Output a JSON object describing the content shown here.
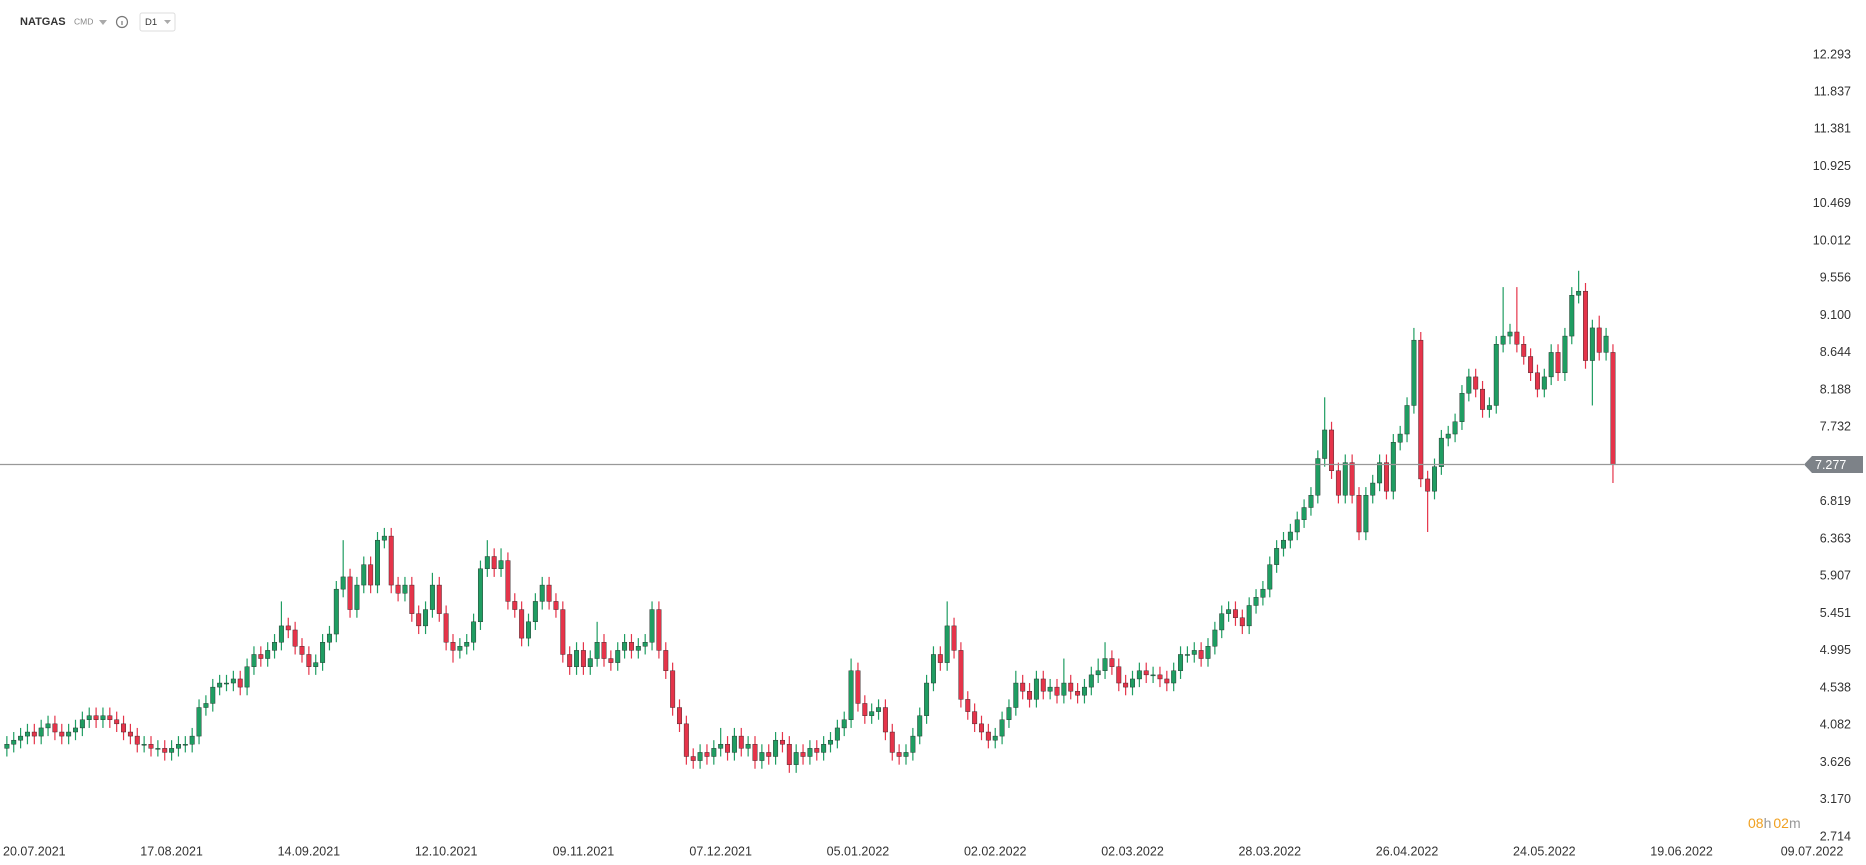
{
  "header": {
    "symbol": "NATGAS",
    "market": "CMD",
    "timeframe": "D1"
  },
  "countdown": {
    "hours": "08",
    "hours_unit": "h",
    "minutes": "02",
    "minutes_unit": "m"
  },
  "chart_data": {
    "type": "candlestick",
    "up_color": "#1f9d62",
    "down_color": "#e5344a",
    "xlim": [
      -1,
      263
    ],
    "ylim": [
      2.714,
      12.293
    ],
    "xticks": [
      {
        "value": 4,
        "label": "20.07.2021"
      },
      {
        "value": 24,
        "label": "17.08.2021"
      },
      {
        "value": 44,
        "label": "14.09.2021"
      },
      {
        "value": 64,
        "label": "12.10.2021"
      },
      {
        "value": 84,
        "label": "09.11.2021"
      },
      {
        "value": 104,
        "label": "07.12.2021"
      },
      {
        "value": 124,
        "label": "05.01.2022"
      },
      {
        "value": 144,
        "label": "02.02.2022"
      },
      {
        "value": 164,
        "label": "02.03.2022"
      },
      {
        "value": 184,
        "label": "28.03.2022"
      },
      {
        "value": 204,
        "label": "26.04.2022"
      },
      {
        "value": 224,
        "label": "24.05.2022"
      },
      {
        "value": 244,
        "label": "19.06.2022"
      },
      {
        "value": 263,
        "label": "09.07.2022"
      }
    ],
    "yticks": [
      2.714,
      {
        "value": 3.17,
        "label": "3.170"
      },
      3.626,
      4.082,
      4.538,
      4.995,
      5.451,
      5.907,
      6.363,
      6.819,
      7.732,
      8.188,
      8.644,
      {
        "value": 9.1,
        "label": "9.100"
      },
      9.556,
      10.012,
      10.469,
      10.925,
      11.381,
      11.837,
      12.293
    ],
    "ohlc": [
      [
        3.8,
        3.95,
        3.7,
        3.85
      ],
      [
        3.85,
        4.0,
        3.75,
        3.9
      ],
      [
        3.9,
        4.05,
        3.8,
        3.95
      ],
      [
        3.95,
        4.1,
        3.85,
        4.0
      ],
      [
        4.0,
        4.1,
        3.85,
        3.95
      ],
      [
        3.95,
        4.15,
        3.85,
        4.05
      ],
      [
        4.05,
        4.2,
        3.95,
        4.1
      ],
      [
        4.1,
        4.2,
        3.9,
        4.0
      ],
      [
        4.0,
        4.1,
        3.85,
        3.95
      ],
      [
        3.95,
        4.1,
        3.85,
        4.0
      ],
      [
        4.0,
        4.15,
        3.9,
        4.05
      ],
      [
        4.05,
        4.25,
        3.95,
        4.15
      ],
      [
        4.15,
        4.3,
        4.05,
        4.2
      ],
      [
        4.2,
        4.3,
        4.05,
        4.15
      ],
      [
        4.15,
        4.3,
        4.05,
        4.2
      ],
      [
        4.2,
        4.3,
        4.05,
        4.15
      ],
      [
        4.15,
        4.25,
        4.0,
        4.1
      ],
      [
        4.1,
        4.2,
        3.9,
        4.0
      ],
      [
        4.0,
        4.1,
        3.85,
        3.95
      ],
      [
        3.95,
        4.05,
        3.75,
        3.85
      ],
      [
        3.85,
        3.95,
        3.75,
        3.85
      ],
      [
        3.85,
        3.95,
        3.7,
        3.8
      ],
      [
        3.8,
        3.9,
        3.7,
        3.8
      ],
      [
        3.8,
        3.9,
        3.65,
        3.75
      ],
      [
        3.75,
        3.9,
        3.65,
        3.8
      ],
      [
        3.8,
        3.95,
        3.7,
        3.85
      ],
      [
        3.85,
        3.95,
        3.75,
        3.85
      ],
      [
        3.85,
        4.05,
        3.75,
        3.95
      ],
      [
        3.95,
        4.4,
        3.85,
        4.3
      ],
      [
        4.3,
        4.45,
        4.2,
        4.35
      ],
      [
        4.35,
        4.65,
        4.25,
        4.55
      ],
      [
        4.55,
        4.7,
        4.45,
        4.6
      ],
      [
        4.6,
        4.7,
        4.5,
        4.6
      ],
      [
        4.6,
        4.75,
        4.5,
        4.65
      ],
      [
        4.65,
        4.75,
        4.45,
        4.55
      ],
      [
        4.55,
        4.9,
        4.45,
        4.8
      ],
      [
        4.8,
        5.05,
        4.7,
        4.95
      ],
      [
        4.95,
        5.05,
        4.8,
        4.9
      ],
      [
        4.9,
        5.1,
        4.8,
        5.0
      ],
      [
        5.0,
        5.2,
        4.9,
        5.1
      ],
      [
        5.1,
        5.6,
        5.0,
        5.3
      ],
      [
        5.3,
        5.4,
        5.15,
        5.25
      ],
      [
        5.25,
        5.35,
        4.95,
        5.05
      ],
      [
        5.05,
        5.15,
        4.85,
        4.95
      ],
      [
        4.95,
        5.05,
        4.7,
        4.8
      ],
      [
        4.8,
        4.95,
        4.7,
        4.85
      ],
      [
        4.85,
        5.2,
        4.75,
        5.1
      ],
      [
        5.1,
        5.3,
        5.0,
        5.2
      ],
      [
        5.2,
        5.85,
        5.1,
        5.75
      ],
      [
        5.75,
        6.35,
        5.65,
        5.9
      ],
      [
        5.9,
        6.0,
        5.4,
        5.5
      ],
      [
        5.5,
        5.9,
        5.4,
        5.8
      ],
      [
        5.8,
        6.15,
        5.7,
        6.05
      ],
      [
        6.05,
        6.15,
        5.7,
        5.8
      ],
      [
        5.8,
        6.45,
        5.7,
        6.35
      ],
      [
        6.35,
        6.5,
        6.25,
        6.4
      ],
      [
        6.4,
        6.5,
        5.7,
        5.8
      ],
      [
        5.8,
        5.9,
        5.6,
        5.7
      ],
      [
        5.7,
        5.9,
        5.6,
        5.8
      ],
      [
        5.8,
        5.9,
        5.35,
        5.45
      ],
      [
        5.45,
        5.55,
        5.2,
        5.3
      ],
      [
        5.3,
        5.6,
        5.2,
        5.5
      ],
      [
        5.5,
        5.95,
        5.4,
        5.8
      ],
      [
        5.8,
        5.9,
        5.35,
        5.45
      ],
      [
        5.45,
        5.55,
        5.0,
        5.1
      ],
      [
        5.1,
        5.2,
        4.85,
        5.0
      ],
      [
        5.0,
        5.15,
        4.9,
        5.05
      ],
      [
        5.05,
        5.2,
        4.95,
        5.1
      ],
      [
        5.1,
        5.45,
        5.0,
        5.35
      ],
      [
        5.35,
        6.1,
        5.25,
        6.0
      ],
      [
        6.0,
        6.35,
        5.9,
        6.15
      ],
      [
        6.15,
        6.25,
        5.9,
        6.0
      ],
      [
        6.0,
        6.25,
        5.9,
        6.1
      ],
      [
        6.1,
        6.2,
        5.5,
        5.6
      ],
      [
        5.6,
        5.7,
        5.4,
        5.5
      ],
      [
        5.5,
        5.6,
        5.05,
        5.15
      ],
      [
        5.15,
        5.45,
        5.05,
        5.35
      ],
      [
        5.35,
        5.7,
        5.25,
        5.6
      ],
      [
        5.6,
        5.9,
        5.5,
        5.8
      ],
      [
        5.8,
        5.9,
        5.5,
        5.6
      ],
      [
        5.6,
        5.7,
        5.4,
        5.5
      ],
      [
        5.5,
        5.6,
        4.85,
        4.95
      ],
      [
        4.95,
        5.05,
        4.7,
        4.8
      ],
      [
        4.8,
        5.1,
        4.7,
        5.0
      ],
      [
        5.0,
        5.1,
        4.7,
        4.8
      ],
      [
        4.8,
        5.0,
        4.7,
        4.9
      ],
      [
        4.9,
        5.35,
        4.8,
        5.1
      ],
      [
        5.1,
        5.2,
        4.8,
        4.9
      ],
      [
        4.9,
        5.0,
        4.75,
        4.85
      ],
      [
        4.85,
        5.1,
        4.75,
        5.0
      ],
      [
        5.0,
        5.2,
        4.9,
        5.1
      ],
      [
        5.1,
        5.2,
        4.9,
        5.0
      ],
      [
        5.0,
        5.15,
        4.9,
        5.05
      ],
      [
        5.05,
        5.2,
        4.95,
        5.1
      ],
      [
        5.1,
        5.6,
        5.0,
        5.5
      ],
      [
        5.5,
        5.6,
        4.9,
        5.0
      ],
      [
        5.0,
        5.1,
        4.65,
        4.75
      ],
      [
        4.75,
        4.85,
        4.2,
        4.3
      ],
      [
        4.3,
        4.4,
        4.0,
        4.1
      ],
      [
        4.1,
        4.2,
        3.6,
        3.7
      ],
      [
        3.7,
        3.8,
        3.55,
        3.65
      ],
      [
        3.65,
        3.85,
        3.55,
        3.75
      ],
      [
        3.75,
        3.85,
        3.6,
        3.7
      ],
      [
        3.7,
        3.9,
        3.6,
        3.8
      ],
      [
        3.8,
        4.05,
        3.7,
        3.85
      ],
      [
        3.85,
        3.95,
        3.65,
        3.75
      ],
      [
        3.75,
        4.05,
        3.65,
        3.95
      ],
      [
        3.95,
        4.05,
        3.7,
        3.8
      ],
      [
        3.8,
        3.95,
        3.7,
        3.85
      ],
      [
        3.85,
        3.95,
        3.55,
        3.65
      ],
      [
        3.65,
        3.85,
        3.55,
        3.75
      ],
      [
        3.75,
        3.85,
        3.6,
        3.7
      ],
      [
        3.7,
        4.0,
        3.6,
        3.9
      ],
      [
        3.9,
        4.0,
        3.75,
        3.85
      ],
      [
        3.85,
        3.95,
        3.5,
        3.6
      ],
      [
        3.6,
        3.85,
        3.5,
        3.75
      ],
      [
        3.75,
        3.85,
        3.6,
        3.7
      ],
      [
        3.7,
        3.9,
        3.6,
        3.8
      ],
      [
        3.8,
        3.9,
        3.65,
        3.75
      ],
      [
        3.75,
        3.95,
        3.65,
        3.85
      ],
      [
        3.85,
        4.0,
        3.75,
        3.9
      ],
      [
        3.9,
        4.15,
        3.8,
        4.05
      ],
      [
        4.05,
        4.25,
        3.95,
        4.15
      ],
      [
        4.15,
        4.9,
        4.05,
        4.75
      ],
      [
        4.75,
        4.85,
        4.25,
        4.35
      ],
      [
        4.35,
        4.45,
        4.1,
        4.2
      ],
      [
        4.2,
        4.35,
        4.1,
        4.25
      ],
      [
        4.25,
        4.4,
        4.15,
        4.3
      ],
      [
        4.3,
        4.4,
        3.9,
        4.0
      ],
      [
        4.0,
        4.1,
        3.65,
        3.75
      ],
      [
        3.75,
        3.85,
        3.6,
        3.7
      ],
      [
        3.7,
        3.85,
        3.6,
        3.75
      ],
      [
        3.75,
        4.05,
        3.65,
        3.95
      ],
      [
        3.95,
        4.3,
        3.85,
        4.2
      ],
      [
        4.2,
        4.7,
        4.1,
        4.6
      ],
      [
        4.6,
        5.05,
        4.5,
        4.95
      ],
      [
        4.95,
        5.05,
        4.75,
        4.85
      ],
      [
        4.85,
        5.6,
        4.75,
        5.3
      ],
      [
        5.3,
        5.4,
        4.9,
        5.0
      ],
      [
        5.0,
        5.1,
        4.3,
        4.4
      ],
      [
        4.4,
        4.5,
        4.15,
        4.25
      ],
      [
        4.25,
        4.35,
        4.0,
        4.1
      ],
      [
        4.1,
        4.2,
        3.9,
        4.0
      ],
      [
        4.0,
        4.1,
        3.8,
        3.9
      ],
      [
        3.9,
        4.05,
        3.8,
        3.95
      ],
      [
        3.95,
        4.25,
        3.85,
        4.15
      ],
      [
        4.15,
        4.4,
        4.05,
        4.3
      ],
      [
        4.3,
        4.75,
        4.2,
        4.6
      ],
      [
        4.6,
        4.7,
        4.4,
        4.5
      ],
      [
        4.5,
        4.6,
        4.3,
        4.4
      ],
      [
        4.4,
        4.75,
        4.3,
        4.65
      ],
      [
        4.65,
        4.75,
        4.4,
        4.5
      ],
      [
        4.5,
        4.65,
        4.4,
        4.55
      ],
      [
        4.55,
        4.65,
        4.35,
        4.45
      ],
      [
        4.45,
        4.9,
        4.35,
        4.6
      ],
      [
        4.6,
        4.7,
        4.4,
        4.5
      ],
      [
        4.5,
        4.6,
        4.35,
        4.45
      ],
      [
        4.45,
        4.65,
        4.35,
        4.55
      ],
      [
        4.55,
        4.8,
        4.45,
        4.7
      ],
      [
        4.7,
        4.9,
        4.6,
        4.75
      ],
      [
        4.75,
        5.1,
        4.65,
        4.9
      ],
      [
        4.9,
        5.0,
        4.7,
        4.8
      ],
      [
        4.8,
        4.9,
        4.5,
        4.6
      ],
      [
        4.6,
        4.7,
        4.45,
        4.55
      ],
      [
        4.55,
        4.75,
        4.45,
        4.65
      ],
      [
        4.65,
        4.85,
        4.55,
        4.75
      ],
      [
        4.75,
        4.85,
        4.6,
        4.7
      ],
      [
        4.7,
        4.8,
        4.6,
        4.7
      ],
      [
        4.7,
        4.8,
        4.55,
        4.65
      ],
      [
        4.65,
        4.75,
        4.5,
        4.6
      ],
      [
        4.6,
        4.85,
        4.5,
        4.75
      ],
      [
        4.75,
        5.05,
        4.65,
        4.95
      ],
      [
        4.95,
        5.05,
        4.85,
        4.95
      ],
      [
        4.95,
        5.1,
        4.85,
        5.0
      ],
      [
        5.0,
        5.1,
        4.8,
        4.9
      ],
      [
        4.9,
        5.15,
        4.8,
        5.05
      ],
      [
        5.05,
        5.35,
        4.95,
        5.25
      ],
      [
        5.25,
        5.55,
        5.15,
        5.45
      ],
      [
        5.45,
        5.6,
        5.35,
        5.5
      ],
      [
        5.5,
        5.6,
        5.3,
        5.4
      ],
      [
        5.4,
        5.5,
        5.2,
        5.3
      ],
      [
        5.3,
        5.65,
        5.2,
        5.55
      ],
      [
        5.55,
        5.75,
        5.45,
        5.65
      ],
      [
        5.65,
        5.85,
        5.55,
        5.75
      ],
      [
        5.75,
        6.15,
        5.65,
        6.05
      ],
      [
        6.05,
        6.35,
        5.95,
        6.25
      ],
      [
        6.25,
        6.45,
        6.15,
        6.35
      ],
      [
        6.35,
        6.55,
        6.25,
        6.45
      ],
      [
        6.45,
        6.7,
        6.35,
        6.6
      ],
      [
        6.6,
        6.85,
        6.5,
        6.75
      ],
      [
        6.75,
        7.0,
        6.65,
        6.9
      ],
      [
        6.9,
        7.45,
        6.8,
        7.35
      ],
      [
        7.35,
        8.1,
        7.25,
        7.7
      ],
      [
        7.7,
        7.8,
        7.1,
        7.2
      ],
      [
        7.2,
        7.3,
        6.8,
        6.9
      ],
      [
        6.9,
        7.4,
        6.8,
        7.3
      ],
      [
        7.3,
        7.4,
        6.8,
        6.9
      ],
      [
        6.9,
        7.0,
        6.35,
        6.45
      ],
      [
        6.45,
        7.0,
        6.35,
        6.9
      ],
      [
        6.9,
        7.15,
        6.8,
        7.05
      ],
      [
        7.05,
        7.4,
        6.95,
        7.3
      ],
      [
        7.3,
        7.4,
        6.85,
        6.95
      ],
      [
        6.95,
        7.65,
        6.85,
        7.55
      ],
      [
        7.55,
        7.75,
        7.45,
        7.65
      ],
      [
        7.65,
        8.1,
        7.55,
        8.0
      ],
      [
        8.0,
        8.95,
        7.9,
        8.8
      ],
      [
        8.8,
        8.9,
        7.0,
        7.1
      ],
      [
        7.1,
        7.2,
        6.45,
        6.95
      ],
      [
        6.95,
        7.35,
        6.85,
        7.25
      ],
      [
        7.25,
        7.7,
        7.15,
        7.6
      ],
      [
        7.6,
        7.75,
        7.5,
        7.65
      ],
      [
        7.65,
        7.9,
        7.55,
        7.8
      ],
      [
        7.8,
        8.25,
        7.7,
        8.15
      ],
      [
        8.15,
        8.45,
        8.05,
        8.35
      ],
      [
        8.35,
        8.45,
        8.1,
        8.2
      ],
      [
        8.2,
        8.3,
        7.85,
        7.95
      ],
      [
        7.95,
        8.1,
        7.85,
        8.0
      ],
      [
        8.0,
        8.85,
        7.9,
        8.75
      ],
      [
        8.75,
        9.45,
        8.65,
        8.85
      ],
      [
        8.85,
        9.0,
        8.75,
        8.9
      ],
      [
        8.9,
        9.45,
        8.65,
        8.75
      ],
      [
        8.75,
        8.85,
        8.5,
        8.6
      ],
      [
        8.6,
        8.7,
        8.3,
        8.4
      ],
      [
        8.4,
        8.5,
        8.1,
        8.2
      ],
      [
        8.2,
        8.45,
        8.1,
        8.35
      ],
      [
        8.35,
        8.75,
        8.25,
        8.65
      ],
      [
        8.65,
        8.75,
        8.3,
        8.4
      ],
      [
        8.4,
        8.95,
        8.3,
        8.85
      ],
      [
        8.85,
        9.45,
        8.75,
        9.35
      ],
      [
        9.35,
        9.65,
        9.25,
        9.4
      ],
      [
        9.4,
        9.5,
        8.45,
        8.55
      ],
      [
        8.55,
        9.05,
        8.0,
        8.95
      ],
      [
        8.95,
        9.1,
        8.55,
        8.65
      ],
      [
        8.65,
        8.95,
        8.55,
        8.85
      ],
      [
        8.65,
        8.75,
        7.05,
        7.277
      ]
    ]
  }
}
